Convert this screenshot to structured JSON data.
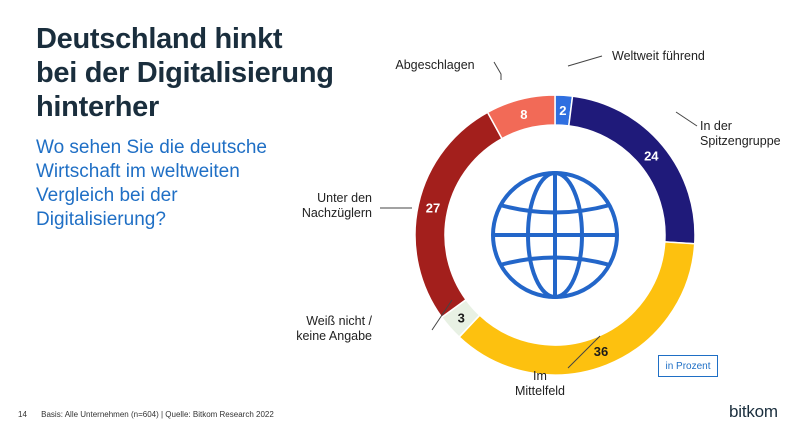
{
  "title_lines": [
    "Deutschland hinkt",
    "bei der Digitalisierung",
    "hinterher"
  ],
  "subtitle_lines": [
    "Wo sehen Sie die deutsche",
    "Wirtschaft im weltweiten",
    "Vergleich bei der",
    "Digitalisierung?"
  ],
  "unit_note": "in Prozent",
  "footer": {
    "page_number": "14",
    "basis": "Basis: Alle Unternehmen (n=604) | Quelle: Bitkom Research 2022"
  },
  "logo": "bitkom",
  "icon": "globe-icon",
  "chart_data": {
    "type": "pie",
    "unit": "Prozent",
    "slices": [
      {
        "label_lines": [
          "Weltweit führend"
        ],
        "value": 2,
        "color": "#2f6fe0",
        "value_color": "#ffffff"
      },
      {
        "label_lines": [
          "In der",
          "Spitzengruppe"
        ],
        "value": 24,
        "color": "#1f1a7a",
        "value_color": "#ffffff"
      },
      {
        "label_lines": [
          "Im",
          "Mittelfeld"
        ],
        "value": 36,
        "color": "#fdc10f",
        "value_color": "#1a1a1a"
      },
      {
        "label_lines": [
          "Weiß nicht /",
          "keine Angabe"
        ],
        "value": 3,
        "color": "#e8f1e4",
        "value_color": "#1a1a1a"
      },
      {
        "label_lines": [
          "Unter den",
          "Nachzüglern"
        ],
        "value": 27,
        "color": "#a31f1c",
        "value_color": "#ffffff"
      },
      {
        "label_lines": [
          "Abgeschlagen"
        ],
        "value": 8,
        "color": "#f26a57",
        "value_color": "#ffffff"
      }
    ]
  }
}
